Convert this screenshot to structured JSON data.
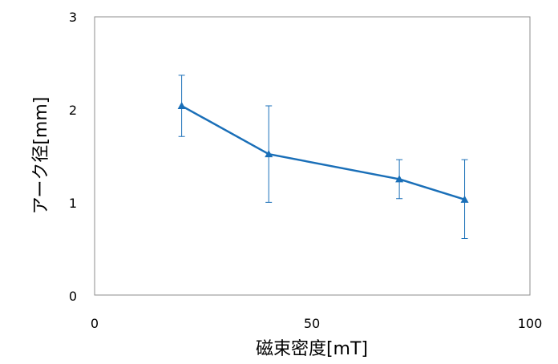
{
  "chart_data": {
    "type": "line",
    "xlabel": "磁束密度[mT]",
    "ylabel": "アーク径[mm]",
    "xlim": [
      0,
      100
    ],
    "ylim": [
      0,
      3
    ],
    "x_ticks": [
      "0",
      "50",
      "100"
    ],
    "y_ticks": [
      "0",
      "1",
      "2",
      "3"
    ],
    "grid": false,
    "series": [
      {
        "color": "#1a6fb8",
        "marker": "triangle",
        "x": [
          20,
          40,
          70,
          85
        ],
        "y": [
          2.04,
          1.52,
          1.25,
          1.03
        ],
        "err_low": [
          1.71,
          1.0,
          1.04,
          0.61
        ],
        "err_high": [
          2.37,
          2.04,
          1.46,
          1.46
        ]
      }
    ]
  }
}
